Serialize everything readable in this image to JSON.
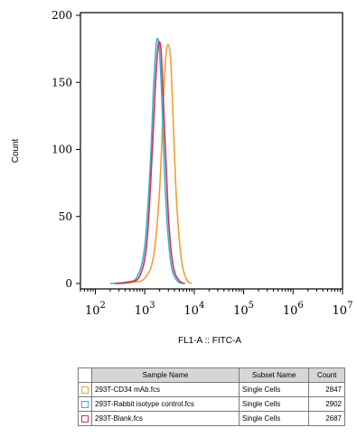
{
  "chart_data": {
    "type": "line",
    "xlabel": "FL1-A :: FITC-A",
    "ylabel": "Count",
    "x_scale": "log",
    "xlim": [
      50,
      10000000
    ],
    "ylim": [
      0,
      200
    ],
    "y_ticks": [
      "0",
      "50",
      "100",
      "150",
      "200"
    ],
    "x_ticks": [
      {
        "base": "10",
        "exp": "2",
        "value": 100
      },
      {
        "base": "10",
        "exp": "3",
        "value": 1000
      },
      {
        "base": "10",
        "exp": "4",
        "value": 10000
      },
      {
        "base": "10",
        "exp": "5",
        "value": 100000
      },
      {
        "base": "10",
        "exp": "6",
        "value": 1000000
      },
      {
        "base": "10",
        "exp": "7",
        "value": 10000000
      }
    ],
    "grid": false,
    "series": [
      {
        "name": "293T-CD34 mAb.fcs",
        "color": "#f0a030",
        "x": [
          300,
          600,
          1000,
          1500,
          2000,
          2400,
          2700,
          3000,
          3300,
          3600,
          4000,
          4500,
          5500,
          7000,
          9000
        ],
        "y": [
          0,
          1,
          4,
          20,
          70,
          140,
          172,
          178,
          170,
          140,
          95,
          55,
          18,
          3,
          0
        ]
      },
      {
        "name": "293T-Rabbit isotype control.fcs",
        "color": "#30b8d8",
        "x": [
          200,
          400,
          700,
          1000,
          1300,
          1500,
          1700,
          1850,
          2000,
          2200,
          2500,
          2900,
          3500,
          4500,
          6000
        ],
        "y": [
          0,
          1,
          5,
          28,
          90,
          145,
          178,
          182,
          172,
          140,
          85,
          40,
          12,
          2,
          0
        ]
      },
      {
        "name": "293T-Blank.fcs",
        "color": "#d83050",
        "x": [
          250,
          500,
          800,
          1100,
          1400,
          1650,
          1850,
          2000,
          2150,
          2350,
          2700,
          3100,
          3800,
          5000,
          6500
        ],
        "y": [
          0,
          1,
          6,
          30,
          95,
          150,
          176,
          180,
          172,
          140,
          88,
          42,
          12,
          2,
          0
        ]
      }
    ]
  },
  "legend_table": {
    "headers": [
      "",
      "Sample Name",
      "Subset Name",
      "Count"
    ],
    "rows": [
      {
        "color": "#f0a030",
        "sample": "293T-CD34 mAb.fcs",
        "subset": "Single Cells",
        "count": "2847"
      },
      {
        "color": "#30b8d8",
        "sample": "293T-Rabbit isotype control.fcs",
        "subset": "Single Cells",
        "count": "2902"
      },
      {
        "color": "#d83050",
        "sample": "293T-Blank.fcs",
        "subset": "Single Cells",
        "count": "2687"
      }
    ]
  }
}
